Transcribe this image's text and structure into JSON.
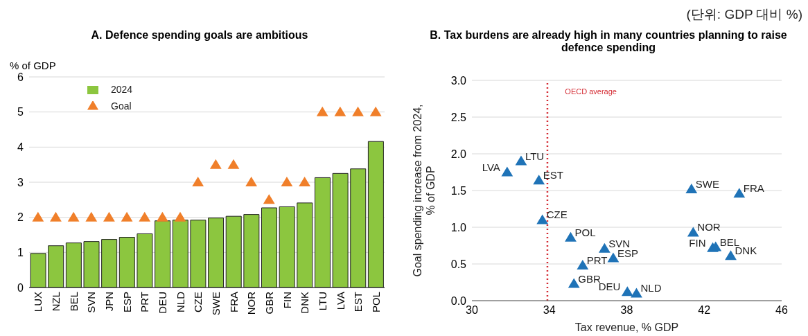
{
  "chart_data": [
    {
      "type": "bar",
      "title": "A. Defence spending goals are ambitious",
      "ylabel": "% of GDP",
      "annotations": [
        "(단위: GDP 대비 %)"
      ],
      "categories": [
        "LUX",
        "NZL",
        "BEL",
        "SVN",
        "JPN",
        "ESP",
        "PRT",
        "DEU",
        "NLD",
        "CZE",
        "SWE",
        "FRA",
        "NOR",
        "GBR",
        "FIN",
        "DNK",
        "LTU",
        "LVA",
        "EST",
        "POL"
      ],
      "series": [
        {
          "name": "2024",
          "type": "bar",
          "color": "#8cc63f",
          "values": [
            0.97,
            1.19,
            1.27,
            1.31,
            1.37,
            1.43,
            1.53,
            1.9,
            1.92,
            1.92,
            1.98,
            2.03,
            2.08,
            2.27,
            2.3,
            2.41,
            3.13,
            3.25,
            3.38,
            4.16
          ]
        },
        {
          "name": "Goal",
          "type": "scatter",
          "marker": "triangle",
          "color": "#f07f2a",
          "values": [
            2,
            2,
            2,
            2,
            2,
            2,
            2,
            2,
            2,
            3,
            3.5,
            3.5,
            3,
            2.5,
            3,
            3,
            5,
            5,
            5,
            5
          ]
        }
      ],
      "ylim": [
        0,
        6
      ],
      "yticks": [
        0,
        1,
        2,
        3,
        4,
        5,
        6
      ],
      "grid": "y",
      "legend": "top left"
    },
    {
      "type": "scatter",
      "title": "B. Tax burdens are already high in many countries planning to raise defence spending",
      "xlabel": "Tax revenue, % GDP",
      "ylabel": "Goal spending increase from 2024,\n% of GDP",
      "marker": "triangle",
      "xlim": [
        30,
        46
      ],
      "xticks": [
        30,
        34,
        38,
        42,
        46
      ],
      "ylim": [
        0,
        3
      ],
      "yticks": [
        {
          "value": 0,
          "label": "0.0"
        },
        {
          "value": 0.5,
          "label": "0.5"
        },
        {
          "value": 1,
          "label": "1.0"
        },
        {
          "value": 1.5,
          "label": "1.5"
        },
        {
          "value": 2,
          "label": "2.0"
        },
        {
          "value": 2.5,
          "label": "2.5"
        },
        {
          "value": 3,
          "label": "3.0"
        }
      ],
      "grid": "y",
      "legend": false,
      "ref_lines": [
        {
          "axis": "x",
          "value": 33.9,
          "label": "OECD average",
          "color": "#d42a32",
          "line_style": "dotted"
        }
      ],
      "series": [
        {
          "name": "LVA",
          "color": "#1f73b7",
          "x": [
            31.82
          ],
          "values": [
            1.75
          ]
        },
        {
          "name": "LTU",
          "color": "#1f73b7",
          "x": [
            32.54
          ],
          "values": [
            1.9
          ]
        },
        {
          "name": "EST",
          "color": "#1f73b7",
          "x": [
            33.46
          ],
          "values": [
            1.64
          ]
        },
        {
          "name": "CZE",
          "color": "#1f73b7",
          "x": [
            33.64
          ],
          "values": [
            1.1
          ]
        },
        {
          "name": "POL",
          "color": "#1f73b7",
          "x": [
            35.1
          ],
          "values": [
            0.86
          ]
        },
        {
          "name": "SVN",
          "color": "#1f73b7",
          "x": [
            36.85
          ],
          "values": [
            0.71
          ]
        },
        {
          "name": "ESP",
          "color": "#1f73b7",
          "x": [
            37.3
          ],
          "values": [
            0.58
          ]
        },
        {
          "name": "PRT",
          "color": "#1f73b7",
          "x": [
            35.72
          ],
          "values": [
            0.48
          ]
        },
        {
          "name": "GBR",
          "color": "#1f73b7",
          "x": [
            35.27
          ],
          "values": [
            0.23
          ]
        },
        {
          "name": "DEU",
          "color": "#1f73b7",
          "x": [
            38.03
          ],
          "values": [
            0.12
          ]
        },
        {
          "name": "NLD",
          "color": "#1f73b7",
          "x": [
            38.5
          ],
          "values": [
            0.1
          ]
        },
        {
          "name": "SWE",
          "color": "#1f73b7",
          "x": [
            41.34
          ],
          "values": [
            1.52
          ]
        },
        {
          "name": "FRA",
          "color": "#1f73b7",
          "x": [
            43.81
          ],
          "values": [
            1.46
          ]
        },
        {
          "name": "NOR",
          "color": "#1f73b7",
          "x": [
            41.43
          ],
          "values": [
            0.93
          ]
        },
        {
          "name": "FIN",
          "color": "#1f73b7",
          "x": [
            42.44
          ],
          "values": [
            0.72
          ]
        },
        {
          "name": "BEL",
          "color": "#1f73b7",
          "x": [
            42.59
          ],
          "values": [
            0.73
          ]
        },
        {
          "name": "DNK",
          "color": "#1f73b7",
          "x": [
            43.37
          ],
          "values": [
            0.61
          ]
        }
      ]
    }
  ]
}
